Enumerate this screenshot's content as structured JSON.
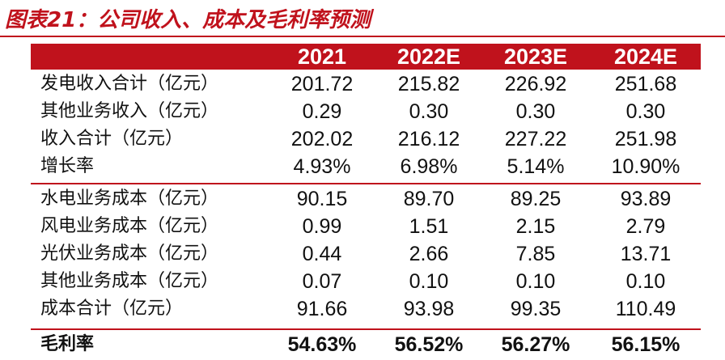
{
  "title": "图表21：公司收入、成本及毛利率预测",
  "columns": [
    "2021",
    "2022E",
    "2023E",
    "2024E"
  ],
  "rows": [
    {
      "label": "发电收入合计（亿元）",
      "values": [
        "201.72",
        "215.82",
        "226.92",
        "251.68"
      ]
    },
    {
      "label": "其他业务收入（亿元）",
      "values": [
        "0.29",
        "0.30",
        "0.30",
        "0.30"
      ]
    },
    {
      "label": "收入合计（亿元）",
      "values": [
        "202.02",
        "216.12",
        "227.22",
        "251.98"
      ]
    },
    {
      "label": "增长率",
      "values": [
        "4.93%",
        "6.98%",
        "5.14%",
        "10.90%"
      ]
    },
    {
      "label": "水电业务成本（亿元）",
      "values": [
        "90.15",
        "89.70",
        "89.25",
        "93.89"
      ]
    },
    {
      "label": "风电业务成本（亿元）",
      "values": [
        "0.99",
        "1.51",
        "2.15",
        "2.79"
      ]
    },
    {
      "label": "光伏业务成本（亿元）",
      "values": [
        "0.44",
        "2.66",
        "7.85",
        "13.71"
      ]
    },
    {
      "label": "其他业务成本（亿元）",
      "values": [
        "0.07",
        "0.10",
        "0.10",
        "0.10"
      ]
    },
    {
      "label": "成本合计（亿元）",
      "values": [
        "91.66",
        "93.98",
        "99.35",
        "110.49"
      ]
    },
    {
      "label": "毛利率",
      "values": [
        "54.63%",
        "56.52%",
        "56.27%",
        "56.15%"
      ]
    }
  ],
  "colors": {
    "accent": "#c0121c",
    "header_text": "#ffffff"
  }
}
